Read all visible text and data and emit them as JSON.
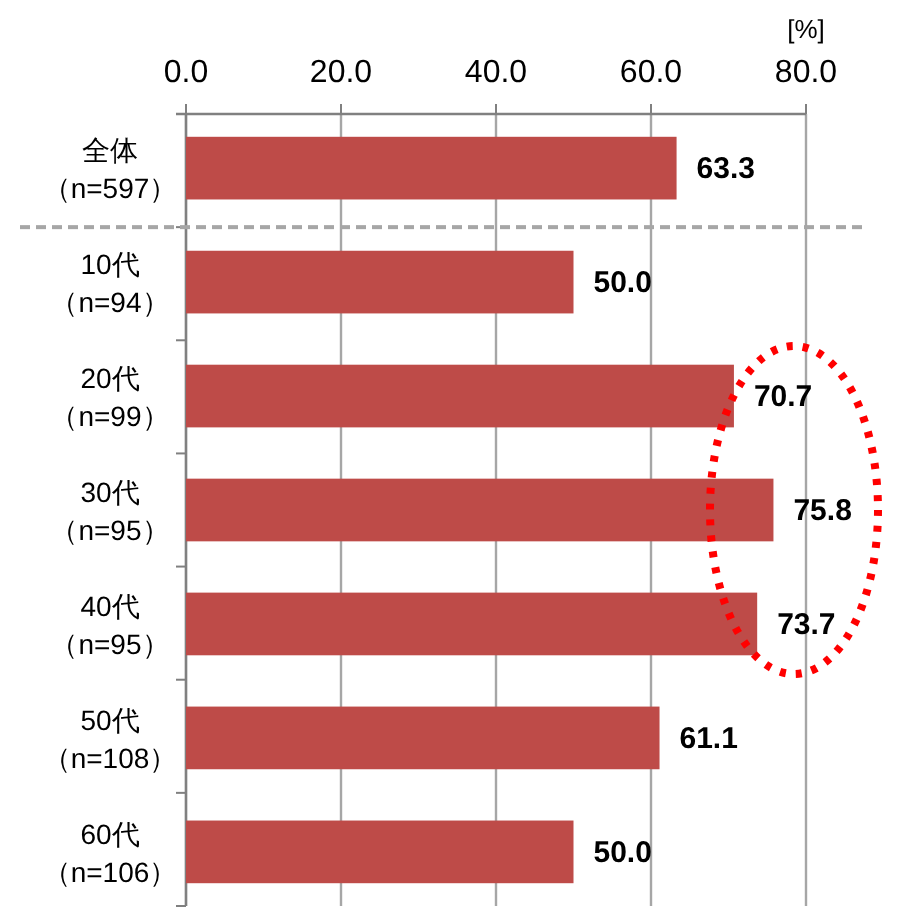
{
  "chart_data": {
    "type": "bar",
    "orientation": "horizontal",
    "xlabel": "[%]",
    "categories": [
      "全体（n=597）",
      "10代（n=94）",
      "20代（n=99）",
      "30代（n=95）",
      "40代（n=95）",
      "50代（n=108）",
      "60代（n=106）"
    ],
    "values": [
      63.3,
      50.0,
      70.7,
      75.8,
      73.7,
      61.1,
      50.0
    ],
    "value_labels": [
      "63.3",
      "50.0",
      "70.7",
      "75.8",
      "73.7",
      "61.1",
      "50.0"
    ],
    "color": "#be4b48",
    "xlim": [
      0,
      80
    ],
    "xticks": [
      {
        "value": 0,
        "label": "0.0"
      },
      {
        "value": 20,
        "label": "20.0"
      },
      {
        "value": 40,
        "label": "40.0"
      },
      {
        "value": 60,
        "label": "60.0"
      },
      {
        "value": 80,
        "label": "80.0"
      }
    ],
    "grid": "x"
  }
}
